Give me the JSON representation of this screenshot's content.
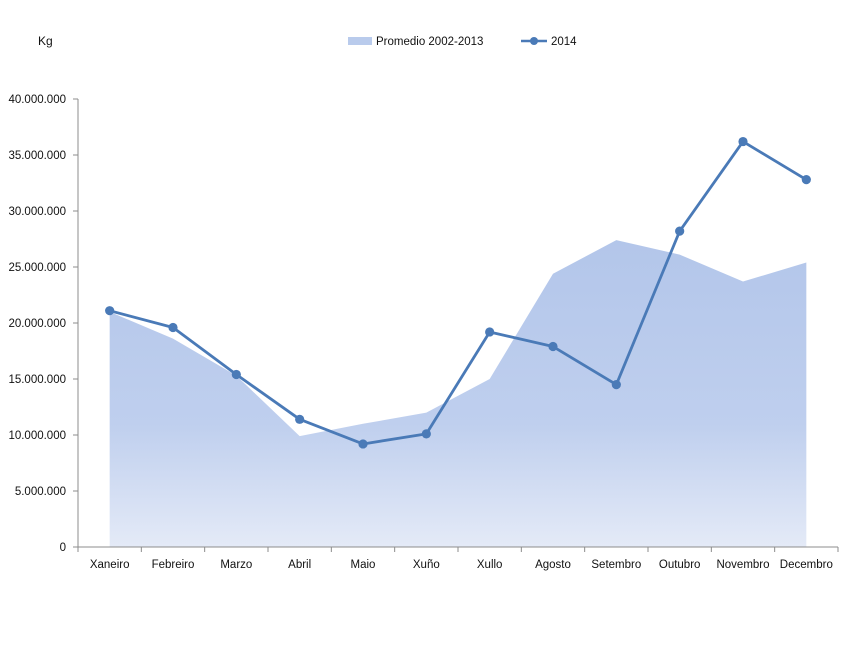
{
  "chart_data": {
    "type": "line",
    "ylabel": "Kg",
    "categories": [
      "Xaneiro",
      "Febreiro",
      "Marzo",
      "Abril",
      "Maio",
      "Xuño",
      "Xullo",
      "Agosto",
      "Setembro",
      "Outubro",
      "Novembro",
      "Decembro"
    ],
    "ylim": [
      0,
      40000000
    ],
    "yticks": [
      0,
      5000000,
      10000000,
      15000000,
      20000000,
      25000000,
      30000000,
      35000000,
      40000000
    ],
    "ytick_labels": [
      "0",
      "5.000.000",
      "10.000.000",
      "15.000.000",
      "20.000.000",
      "25.000.000",
      "30.000.000",
      "35.000.000",
      "40.000.000"
    ],
    "legend_position": "top",
    "grid": false,
    "series": [
      {
        "name": "Promedio 2002-2013",
        "kind": "area",
        "color": "#b9cbec",
        "values": [
          21000000,
          18600000,
          15300000,
          9900000,
          11000000,
          12000000,
          15000000,
          24400000,
          27400000,
          26100000,
          23700000,
          25400000
        ]
      },
      {
        "name": "2014",
        "kind": "line",
        "color": "#4a7ab7",
        "values": [
          21100000,
          19600000,
          15400000,
          11400000,
          9200000,
          10100000,
          19200000,
          17900000,
          14500000,
          28200000,
          36200000,
          32800000
        ]
      }
    ]
  }
}
